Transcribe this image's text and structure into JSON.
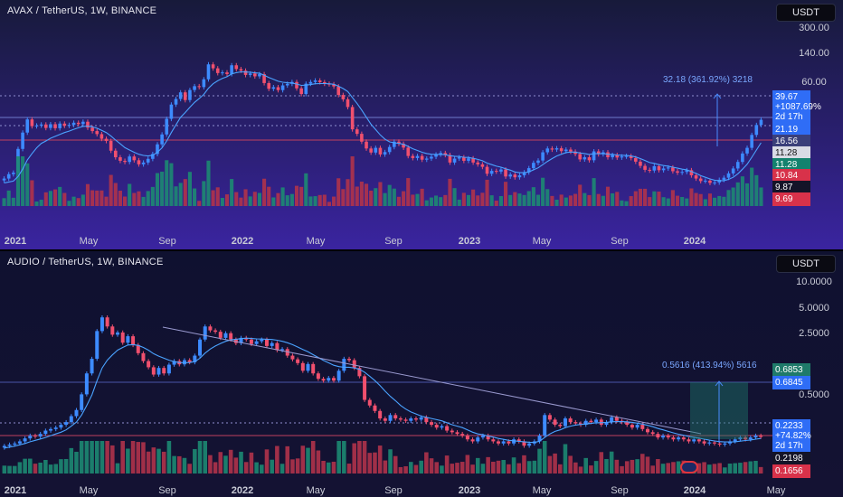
{
  "chart_data": [
    {
      "type": "candlestick",
      "title": "AVAX / TetherUS, 1W, BINANCE",
      "currency_button": "USDT",
      "scale": "log",
      "y_ticks": [
        "300.00",
        "140.00",
        "60.00"
      ],
      "x_ticks": [
        "2021",
        "May",
        "Sep",
        "2022",
        "May",
        "Sep",
        "2023",
        "May",
        "Sep",
        "2024"
      ],
      "close": [
        11.0,
        12.1,
        12.5,
        21.0,
        30.0,
        40.0,
        34.5,
        35.0,
        35.8,
        33.2,
        36.0,
        33.0,
        36.5,
        34.8,
        35.5,
        37.2,
        36.1,
        38.0,
        33.4,
        31.0,
        29.0,
        26.2,
        25.0,
        20.2,
        17.5,
        16.2,
        15.8,
        17.8,
        16.4,
        15.0,
        15.6,
        16.9,
        18.8,
        23.2,
        28.8,
        40.5,
        55.3,
        62.5,
        72.2,
        61.0,
        76.0,
        82.6,
        81.0,
        96.0,
        133.0,
        122.0,
        110.0,
        111.6,
        107.6,
        130.4,
        120.0,
        116.0,
        105.6,
        109.0,
        102.4,
        107.4,
        88.4,
        78.0,
        80.8,
        75.8,
        84.0,
        87.0,
        90.5,
        78.8,
        69.6,
        87.2,
        90.5,
        93.6,
        90.2,
        87.2,
        86.2,
        82.2,
        68.2,
        62.0,
        52.4,
        32.2,
        29.2,
        24.6,
        21.2,
        19.4,
        21.5,
        18.6,
        19.6,
        21.9,
        24.6,
        23.5,
        21.6,
        18.0,
        17.2,
        18.0,
        16.6,
        17.0,
        17.7,
        18.6,
        19.2,
        18.4,
        15.6,
        17.0,
        17.5,
        16.2,
        17.1,
        15.6,
        15.0,
        14.2,
        12.2,
        13.0,
        12.8,
        13.4,
        11.5,
        12.0,
        11.3,
        11.8,
        12.6,
        13.8,
        15.5,
        16.3,
        19.5,
        21.2,
        20.7,
        21.3,
        20.0,
        20.7,
        19.8,
        18.8,
        16.7,
        17.5,
        16.4,
        19.9,
        18.7,
        19.5,
        17.5,
        18.4,
        17.4,
        17.8,
        18.0,
        17.2,
        15.9,
        14.5,
        13.3,
        13.1,
        14.4,
        13.2,
        13.7,
        14.0,
        12.9,
        12.5,
        12.7,
        13.2,
        11.8,
        11.0,
        10.4,
        10.5,
        10.0,
        10.1,
        10.7,
        11.2,
        12.3,
        13.7,
        15.8,
        19.0,
        21.5,
        28.5,
        35.4,
        39.67
      ],
      "ma": [
        10.0,
        10.2,
        10.4,
        11.5,
        13.5,
        16.5,
        19.0,
        21.5,
        23.7,
        25.0,
        26.5,
        27.6,
        28.8,
        30.0,
        31.0,
        32.2,
        33.3,
        34.3,
        34.6,
        34.0,
        33.0,
        31.5,
        30.0,
        27.8,
        25.5,
        23.5,
        21.6,
        20.5,
        19.5,
        18.7,
        18.2,
        18.0,
        18.3,
        19.5,
        21.5,
        25.0,
        30.0,
        35.5,
        42.0,
        46.5,
        52.0,
        58.0,
        63.0,
        69.0,
        79.0,
        87.0,
        93.0,
        98.0,
        101.5,
        108.0,
        111.0,
        113.0,
        112.5,
        112.0,
        110.5,
        109.5,
        105.0,
        100.0,
        96.0,
        92.0,
        90.0,
        89.0,
        88.5,
        86.5,
        84.0,
        84.5,
        85.5,
        87.0,
        87.5,
        87.5,
        87.0,
        86.0,
        82.5,
        78.5,
        73.5,
        64.5,
        56.5,
        49.0,
        42.0,
        36.0,
        32.0,
        28.5,
        26.0,
        24.5,
        24.0,
        23.7,
        23.2,
        22.2,
        21.1,
        20.3,
        19.5,
        19.0,
        18.7,
        18.6,
        18.6,
        18.5,
        18.1,
        17.9,
        17.8,
        17.5,
        17.4,
        17.1,
        16.7,
        16.2,
        15.4,
        14.9,
        14.4,
        14.1,
        13.6,
        13.2,
        12.7,
        12.5,
        12.5,
        12.7,
        13.3,
        13.9,
        14.9,
        16.0,
        17.0,
        18.0,
        18.7,
        19.4,
        19.6,
        19.6,
        19.2,
        19.0,
        18.6,
        18.9,
        18.9,
        19.0,
        18.7,
        18.6,
        18.4,
        18.3,
        18.2,
        18.0,
        17.6,
        17.0,
        16.3,
        15.6,
        15.3,
        14.9,
        14.6,
        14.4,
        14.1,
        13.8,
        13.5,
        13.3,
        12.8,
        12.3,
        11.7,
        11.3,
        10.9,
        10.6,
        10.5,
        10.5,
        10.8,
        11.3,
        12.2,
        13.5,
        15.0,
        17.5,
        20.5,
        24.0
      ],
      "price_labels": [
        {
          "text": "39.67\n+1087.69%\n2d 17h",
          "color": "#2f6df6"
        },
        {
          "text": "21.19",
          "color": "#2f6df6"
        },
        {
          "text": "16.56",
          "color": "#3a3f7a"
        },
        {
          "text": "11.28",
          "color": "#d9dbe5"
        },
        {
          "text": "11.28",
          "color": "#13826e"
        },
        {
          "text": "10.84",
          "color": "#d8324a"
        },
        {
          "text": "9.87",
          "color": "#141428"
        },
        {
          "text": "9.69",
          "color": "#d8324a"
        }
      ],
      "measure_label": "32.18 (361.92%) 3218"
    },
    {
      "type": "candlestick",
      "title": "AUDIO / TetherUS, 1W, BINANCE",
      "currency_button": "USDT",
      "scale": "log",
      "y_ticks": [
        "10.0000",
        "5.0000",
        "2.5000",
        "0.5000"
      ],
      "x_ticks": [
        "2021",
        "May",
        "Sep",
        "2022",
        "May",
        "Sep",
        "2023",
        "May",
        "Sep",
        "2024",
        "May"
      ],
      "close": [
        0.179,
        0.185,
        0.19,
        0.2,
        0.215,
        0.23,
        0.225,
        0.24,
        0.26,
        0.27,
        0.28,
        0.3,
        0.32,
        0.37,
        0.43,
        0.63,
        1.05,
        1.5,
        2.95,
        4.12,
        3.3,
        2.7,
        2.85,
        2.22,
        2.6,
        2.1,
        1.72,
        1.42,
        1.22,
        1.02,
        1.2,
        1.05,
        1.3,
        1.42,
        1.31,
        1.45,
        1.38,
        1.62,
        2.4,
        3.3,
        3.0,
        2.9,
        2.5,
        2.8,
        2.4,
        2.2,
        2.5,
        2.4,
        2.15,
        2.3,
        2.4,
        2.05,
        2.2,
        1.85,
        1.9,
        1.62,
        1.48,
        1.35,
        1.12,
        1.32,
        1.05,
        0.92,
        0.88,
        0.94,
        0.88,
        1.12,
        1.5,
        1.45,
        1.2,
        0.98,
        0.55,
        0.48,
        0.42,
        0.35,
        0.33,
        0.38,
        0.35,
        0.34,
        0.33,
        0.35,
        0.34,
        0.36,
        0.32,
        0.3,
        0.28,
        0.29,
        0.26,
        0.25,
        0.24,
        0.23,
        0.21,
        0.2,
        0.22,
        0.23,
        0.21,
        0.2,
        0.19,
        0.2,
        0.19,
        0.21,
        0.2,
        0.18,
        0.19,
        0.2,
        0.23,
        0.38,
        0.34,
        0.3,
        0.29,
        0.35,
        0.32,
        0.31,
        0.3,
        0.33,
        0.32,
        0.34,
        0.3,
        0.32,
        0.36,
        0.33,
        0.32,
        0.3,
        0.28,
        0.3,
        0.27,
        0.25,
        0.24,
        0.22,
        0.23,
        0.22,
        0.21,
        0.22,
        0.21,
        0.2,
        0.21,
        0.2,
        0.19,
        0.195,
        0.19,
        0.185,
        0.19,
        0.2,
        0.21,
        0.22,
        0.21,
        0.22,
        0.23,
        0.2233
      ],
      "ma": [
        0.17,
        0.174,
        0.178,
        0.184,
        0.19,
        0.198,
        0.205,
        0.212,
        0.22,
        0.23,
        0.24,
        0.25,
        0.265,
        0.29,
        0.32,
        0.38,
        0.48,
        0.62,
        0.88,
        1.2,
        1.45,
        1.65,
        1.85,
        1.98,
        2.1,
        2.12,
        2.08,
        1.98,
        1.85,
        1.7,
        1.6,
        1.52,
        1.45,
        1.4,
        1.37,
        1.36,
        1.37,
        1.4,
        1.52,
        1.72,
        1.9,
        2.05,
        2.18,
        2.3,
        2.38,
        2.42,
        2.45,
        2.48,
        2.46,
        2.44,
        2.43,
        2.42,
        2.4,
        2.36,
        2.3,
        2.22,
        2.12,
        2.0,
        1.88,
        1.78,
        1.66,
        1.55,
        1.44,
        1.36,
        1.28,
        1.24,
        1.22,
        1.22,
        1.2,
        1.16,
        1.08,
        0.98,
        0.88,
        0.78,
        0.68,
        0.6,
        0.54,
        0.48,
        0.44,
        0.41,
        0.39,
        0.37,
        0.36,
        0.35,
        0.34,
        0.33,
        0.315,
        0.3,
        0.29,
        0.28,
        0.265,
        0.25,
        0.24,
        0.235,
        0.228,
        0.222,
        0.215,
        0.21,
        0.205,
        0.203,
        0.2,
        0.198,
        0.196,
        0.195,
        0.2,
        0.22,
        0.24,
        0.255,
        0.265,
        0.28,
        0.29,
        0.298,
        0.302,
        0.305,
        0.31,
        0.315,
        0.315,
        0.318,
        0.322,
        0.324,
        0.324,
        0.322,
        0.318,
        0.312,
        0.305,
        0.296,
        0.286,
        0.274,
        0.265,
        0.255,
        0.246,
        0.238,
        0.232,
        0.226,
        0.221,
        0.216,
        0.211,
        0.206,
        0.202,
        0.199,
        0.197,
        0.197,
        0.198,
        0.201,
        0.204,
        0.207,
        0.211,
        0.215
      ],
      "price_labels": [
        {
          "text": "0.6853",
          "color": "#1f7a6a"
        },
        {
          "text": "0.6845",
          "color": "#2f6df6"
        },
        {
          "text": "0.2233\n+74.82%\n2d 17h",
          "color": "#2f6df6"
        },
        {
          "text": "0.2198",
          "color": "#141428"
        },
        {
          "text": "0.1656",
          "color": "#d8324a"
        }
      ],
      "measure_label": "0.5616 (413.94%) 5616"
    }
  ],
  "colors": {
    "up": "#3d8bff",
    "down": "#f0506e",
    "ma": "#4aa3ff",
    "vol_up": "#1d8a72",
    "vol_down": "#b0334a"
  }
}
